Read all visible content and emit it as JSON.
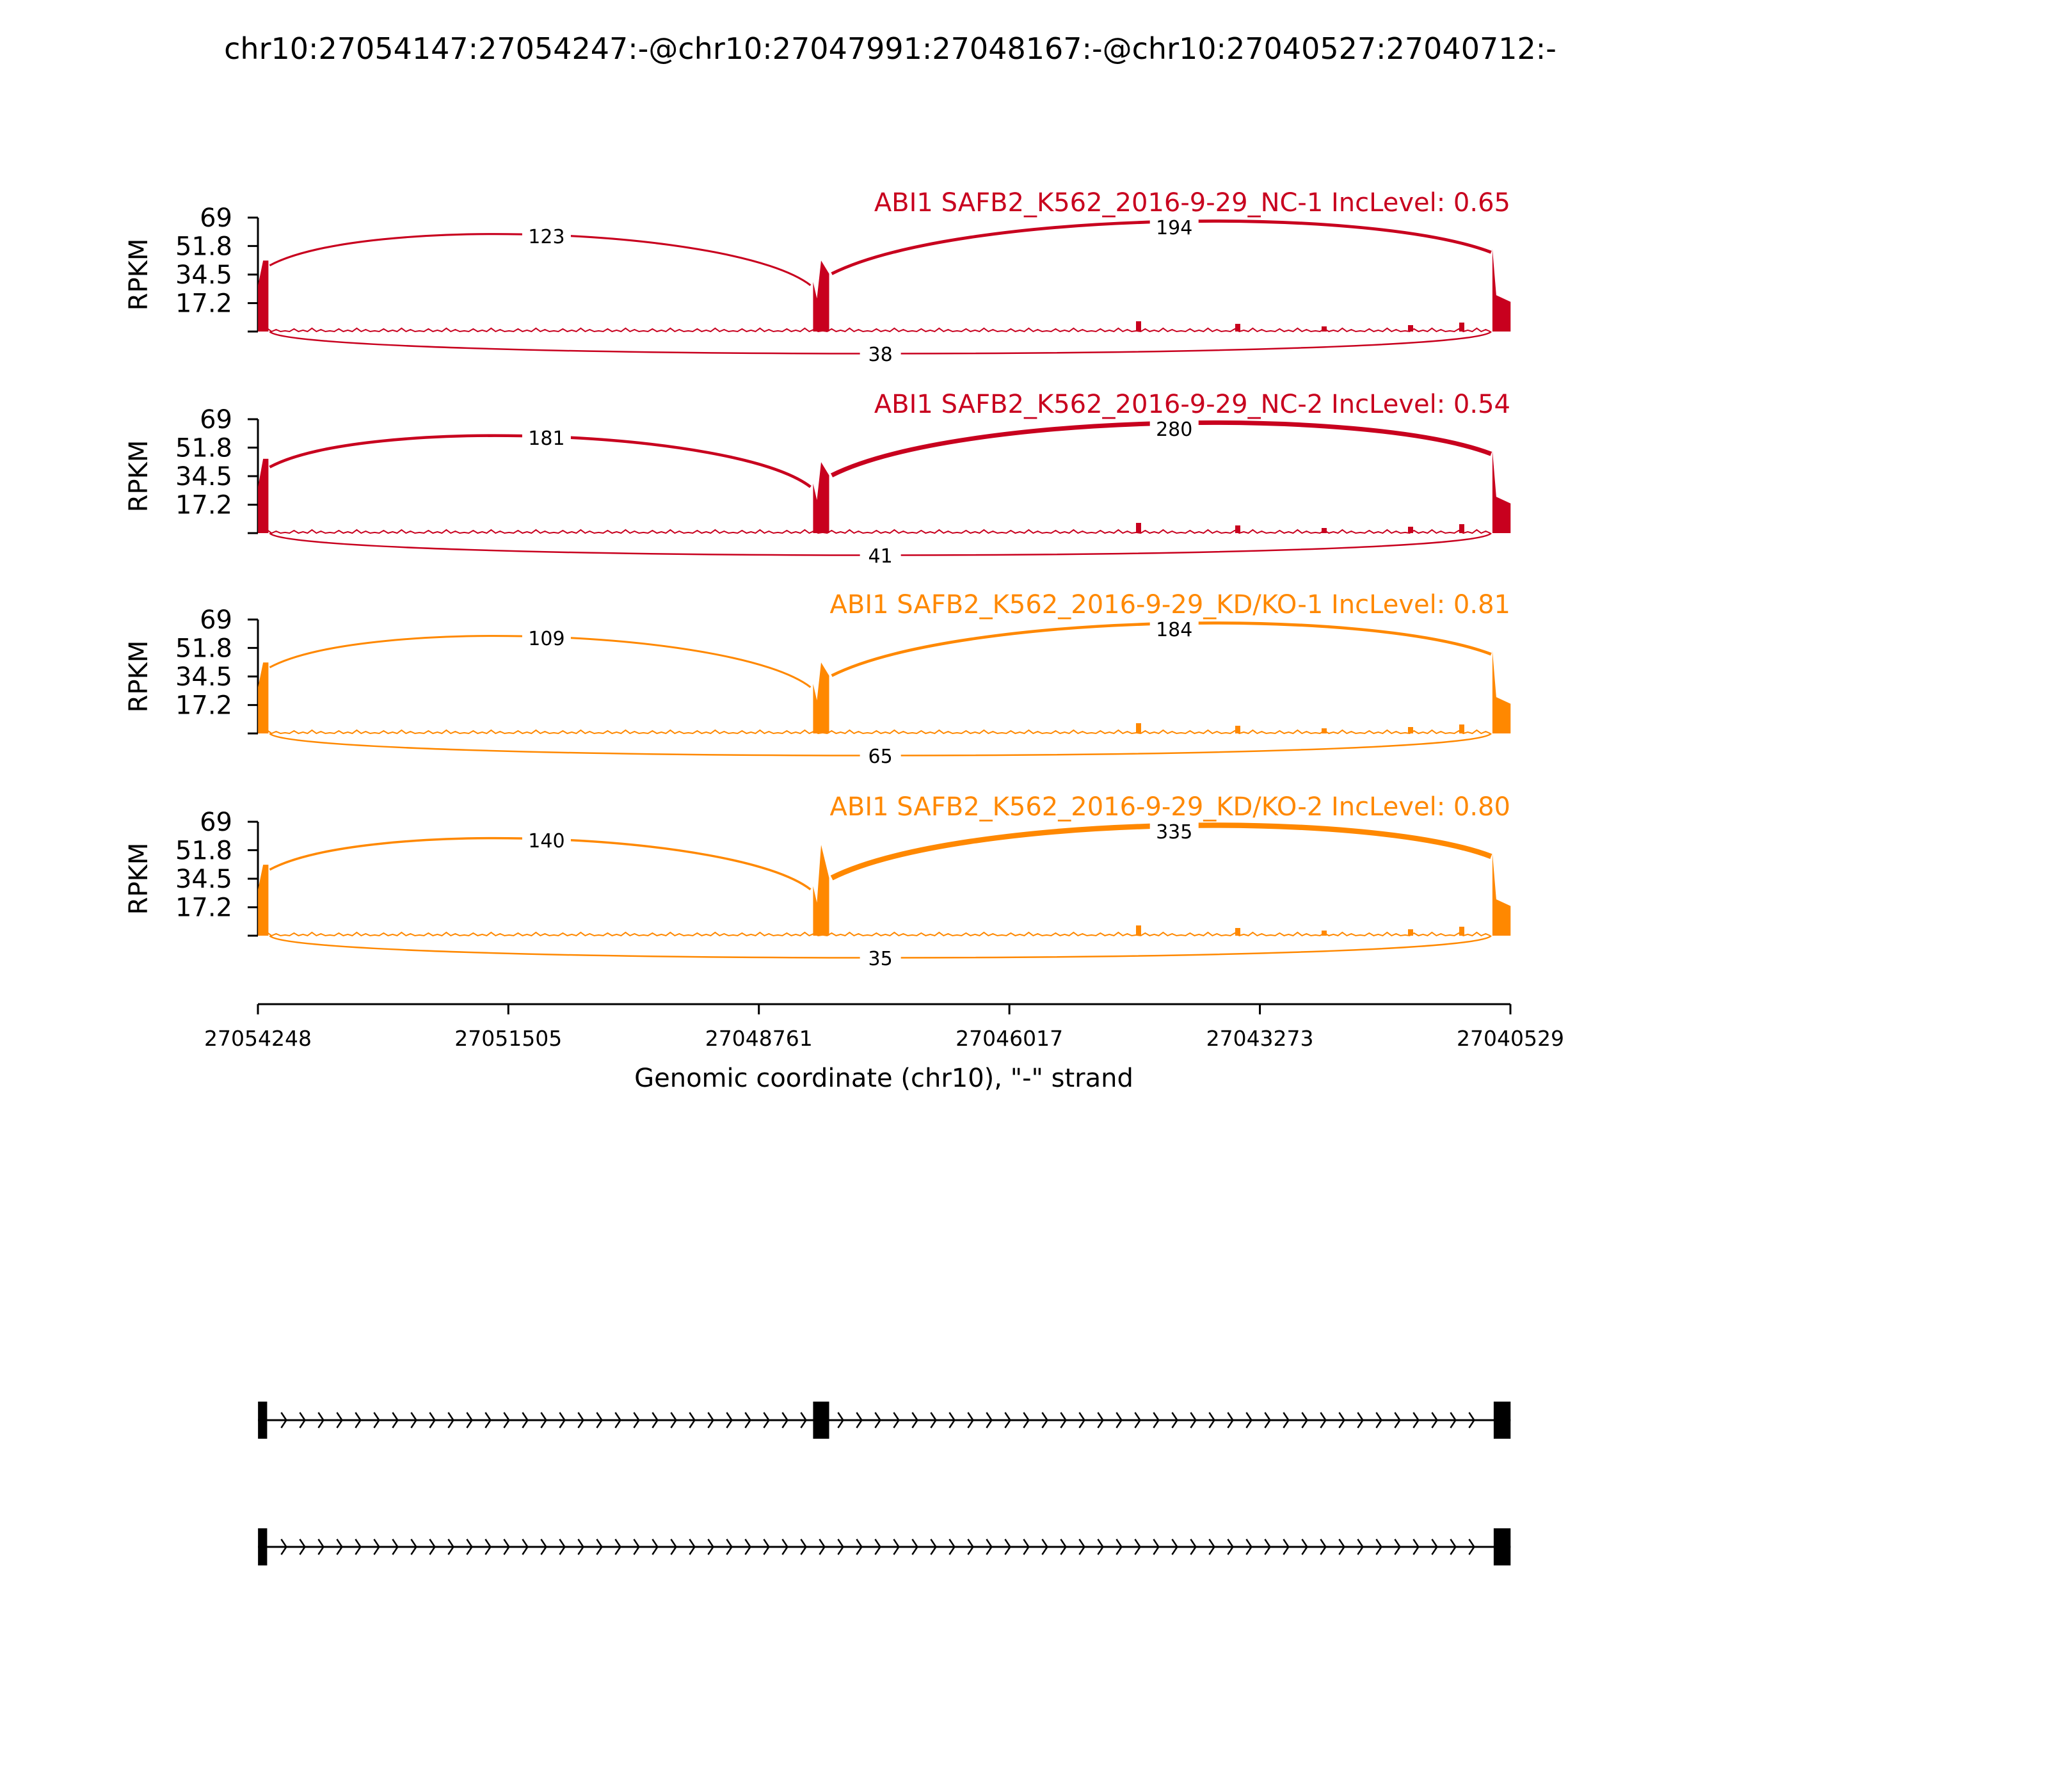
{
  "figure": {
    "title": "chr10:27054147:27054247:-@chr10:27047991:27048167:-@chr10:27040527:27040712:-"
  },
  "chart_data": {
    "type": "sashimi",
    "ylabel": "RPKM",
    "yticks": [
      "17.2",
      "34.5",
      "51.8",
      "69"
    ],
    "ylim": [
      0,
      69
    ],
    "xlabel": "Genomic coordinate (chr10), \"-\" strand",
    "xticks": [
      "27054248",
      "27051505",
      "27048761",
      "27046017",
      "27043273",
      "27040529"
    ],
    "xlim": [
      27054248,
      27040529
    ],
    "strand": "-",
    "exons": [
      {
        "start": 27054247,
        "end": 27054147
      },
      {
        "start": 27048167,
        "end": 27047991
      },
      {
        "start": 27040712,
        "end": 27040527
      }
    ],
    "tracks": [
      {
        "label": "ABI1 SAFB2_K562_2016-9-29_NC-1 IncLevel: 0.65",
        "color": "#c8001e",
        "junctions": {
          "upstream": 123,
          "downstream": 194,
          "skip": 38
        }
      },
      {
        "label": "ABI1 SAFB2_K562_2016-9-29_NC-2 IncLevel: 0.54",
        "color": "#c8001e",
        "junctions": {
          "upstream": 181,
          "downstream": 280,
          "skip": 41
        }
      },
      {
        "label": "ABI1 SAFB2_K562_2016-9-29_KD/KO-1 IncLevel: 0.81",
        "color": "#ff8800",
        "junctions": {
          "upstream": 109,
          "downstream": 184,
          "skip": 65
        }
      },
      {
        "label": "ABI1 SAFB2_K562_2016-9-29_KD/KO-2 IncLevel: 0.80",
        "color": "#ff8800",
        "junctions": {
          "upstream": 140,
          "downstream": 335,
          "skip": 35
        }
      }
    ],
    "isoforms": [
      {
        "exons": [
          0,
          1,
          2
        ]
      },
      {
        "exons": [
          0,
          2
        ]
      }
    ]
  }
}
